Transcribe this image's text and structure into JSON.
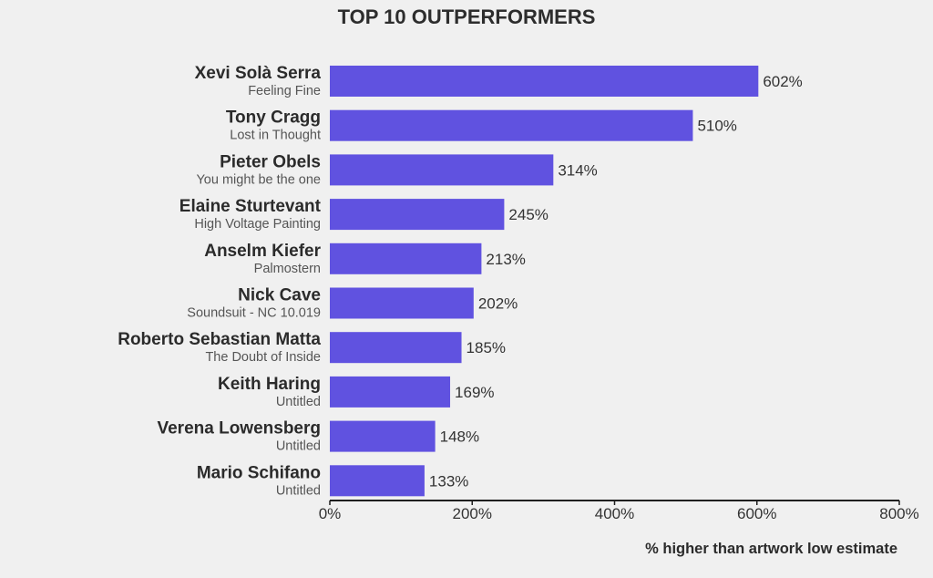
{
  "chart_data": {
    "type": "bar",
    "orientation": "horizontal",
    "title": "TOP 10 OUTPERFORMERS",
    "xlabel": "% higher than artwork low estimate",
    "xlim": [
      0,
      800
    ],
    "xticks": [
      0,
      200,
      400,
      600,
      800
    ],
    "tick_suffix": "%",
    "grid": false,
    "bar_color": "#6052e0",
    "categories": [
      "Xevi Solà Serra",
      "Tony Cragg",
      "Pieter Obels",
      "Elaine Sturtevant",
      "Anselm Kiefer",
      "Nick Cave",
      "Roberto Sebastian Matta",
      "Keith Haring",
      "Verena Lowensberg",
      "Mario Schifano"
    ],
    "subtitles": [
      "Feeling Fine",
      "Lost in Thought",
      "You might be the one",
      "High Voltage Painting",
      "Palmostern",
      "Soundsuit - NC 10.019",
      "The Doubt of Inside",
      "Untitled",
      "Untitled",
      "Untitled"
    ],
    "values": [
      602,
      510,
      314,
      245,
      213,
      202,
      185,
      169,
      148,
      133
    ]
  }
}
